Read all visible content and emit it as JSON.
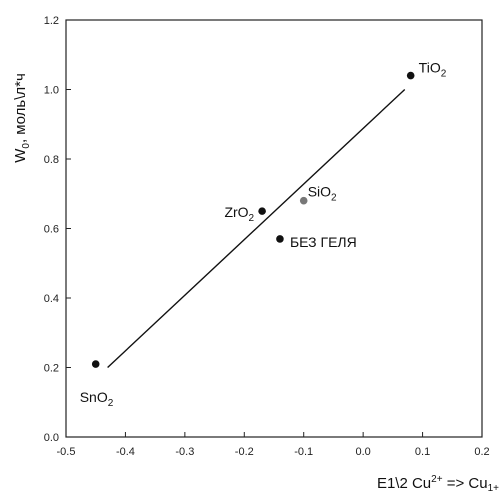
{
  "chart_data": {
    "type": "scatter",
    "xlabel": "E1\\2 Cu",
    "xlabel_sup": "2+",
    "xlabel_tail": " => Cu",
    "xlabel_sub": "1+",
    "ylabel": "W",
    "ylabel_sub": "0",
    "ylabel_tail": ", моль\\л*ч",
    "xlim": [
      -0.5,
      0.2
    ],
    "ylim": [
      0.0,
      1.2
    ],
    "xticks": [
      "-0.5",
      "-0.4",
      "-0.3",
      "-0.2",
      "-0.1",
      "0.0",
      "0.1",
      "0.2"
    ],
    "yticks": [
      "0.0",
      "0.2",
      "0.4",
      "0.6",
      "0.8",
      "1.0",
      "1.2"
    ],
    "grid": false,
    "points": [
      {
        "name": "TiO",
        "sub": "2",
        "x": 0.08,
        "y": 1.04,
        "color": "#111111"
      },
      {
        "name": "SiO",
        "sub": "2",
        "x": -0.1,
        "y": 0.68,
        "color": "#777777"
      },
      {
        "name": "ZrO",
        "sub": "2",
        "x": -0.17,
        "y": 0.65,
        "color": "#111111"
      },
      {
        "name": "БЕЗ ГЕЛЯ",
        "sub": "",
        "x": -0.14,
        "y": 0.57,
        "color": "#111111"
      },
      {
        "name": "SnO",
        "sub": "2",
        "x": -0.45,
        "y": 0.21,
        "color": "#111111"
      }
    ],
    "fit_line": {
      "x": [
        -0.43,
        0.07
      ],
      "y": [
        0.2,
        1.0
      ]
    }
  }
}
